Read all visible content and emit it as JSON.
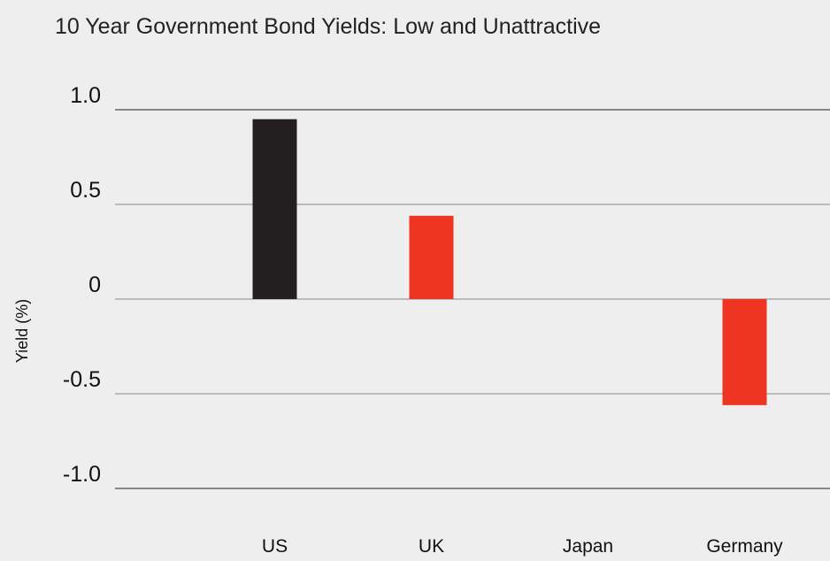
{
  "chart_data": {
    "type": "bar",
    "title": "10 Year Government Bond Yields: Low and Unattractive",
    "xlabel": "",
    "ylabel": "Yield (%)",
    "categories": [
      "US",
      "UK",
      "Japan",
      "Germany"
    ],
    "values": [
      0.95,
      0.44,
      0.0,
      -0.56
    ],
    "bar_colors": [
      "#231f20",
      "#ee3524",
      "#ee3524",
      "#ee3524"
    ],
    "ylim": [
      -1.0,
      1.0
    ],
    "yticks": [
      1.0,
      0.5,
      0,
      -0.5,
      -1.0
    ],
    "ytick_labels": [
      "1.0",
      "0.5",
      "0",
      "-0.5",
      "-1.0"
    ],
    "grid": true,
    "legend": "none",
    "background": "#eeeeee",
    "gridline_color": "#888888"
  }
}
